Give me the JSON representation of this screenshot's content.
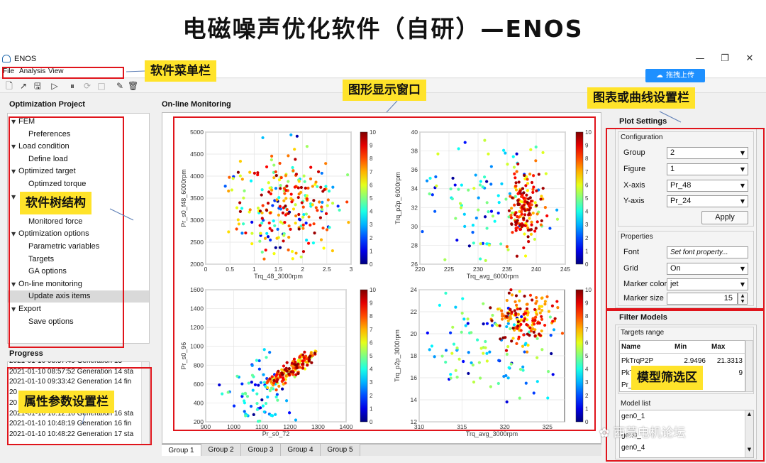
{
  "header": {
    "title": "电磁噪声优化软件（自研）—ENOS"
  },
  "window": {
    "app_name": "ENOS",
    "min_glyph": "—",
    "max_glyph": "❐",
    "close_glyph": "✕"
  },
  "menu": {
    "file": "File",
    "analysis": "Analysis",
    "view": "View"
  },
  "upload_button": {
    "label": "拖拽上传"
  },
  "left": {
    "project_title": "Optimization Project",
    "tree": [
      {
        "label": "FEM",
        "level": 0,
        "expanded": true
      },
      {
        "label": "Preferences",
        "level": 1
      },
      {
        "label": "Load condition",
        "level": 0,
        "expanded": true
      },
      {
        "label": "Define load",
        "level": 1
      },
      {
        "label": "Optimized target",
        "level": 0,
        "expanded": true
      },
      {
        "label": "Optimzed torque",
        "level": 1
      },
      {
        "label": "",
        "level": 0,
        "expanded": true
      },
      {
        "label": "Monitored torque",
        "level": 1
      },
      {
        "label": "Monitored force",
        "level": 1
      },
      {
        "label": "Optimization options",
        "level": 0,
        "expanded": true
      },
      {
        "label": "Parametric variables",
        "level": 1
      },
      {
        "label": "Targets",
        "level": 1
      },
      {
        "label": "GA options",
        "level": 1
      },
      {
        "label": "On-line monitoring",
        "level": 0,
        "expanded": true
      },
      {
        "label": "Update axis items",
        "level": 1,
        "selected": true
      },
      {
        "label": "Export",
        "level": 0,
        "expanded": true
      },
      {
        "label": "Save options",
        "level": 1
      }
    ],
    "progress_title": "Progress",
    "progress_log": [
      "2021-01-10 08:57:49  Generation 13",
      "2021-01-10 08:57:52  Generation 14 sta",
      "2021-01-10 09:33:42  Generation 14 fin",
      "20",
      "20",
      "2021-01-10 10:12:16  Generation 16 sta",
      "2021-01-10 10:48:19  Generation 16 fin",
      "2021-01-10 10:48:22  Generation 17 sta"
    ]
  },
  "center": {
    "title": "On-line Monitoring",
    "tabs": [
      "Group 1",
      "Group 2",
      "Group 3",
      "Group 4",
      "Group 5"
    ]
  },
  "right": {
    "plot_settings_title": "Plot Settings",
    "configuration": {
      "title": "Configuration",
      "group_label": "Group",
      "group_value": "2",
      "figure_label": "Figure",
      "figure_value": "1",
      "xaxis_label": "X-axis",
      "xaxis_value": "Pr_48",
      "yaxis_label": "Y-axis",
      "yaxis_value": "Pr_24",
      "apply": "Apply"
    },
    "properties": {
      "title": "Properties",
      "font_label": "Font",
      "font_value": "Set font property...",
      "grid_label": "Grid",
      "grid_value": "On",
      "marker_color_label": "Marker color",
      "marker_color_value": "jet",
      "marker_size_label": "Marker size",
      "marker_size_value": "15"
    },
    "filter": {
      "title": "Filter Models",
      "targets_range": "Targets range",
      "columns": [
        "Name",
        "Min",
        "Max"
      ],
      "rows": [
        {
          "name": "PkTrqP2P",
          "min": "2.9496",
          "max": "21.3313"
        },
        {
          "name": "PkT",
          "min": "",
          "max": "9"
        },
        {
          "name": "Pr_",
          "min": "",
          "max": ""
        }
      ],
      "model_list_title": "Model list",
      "models": [
        "gen0_1",
        "gen0_",
        "gen0_4"
      ]
    }
  },
  "annotations": {
    "menu_bar": "软件菜单栏",
    "plot_window": "图形显示窗口",
    "chart_settings": "图表或曲线设置栏",
    "tree": "软件树结构",
    "props": "属性参数设置栏",
    "filter": "模型筛选区",
    "watermark": "西莫电机论坛"
  },
  "colors": {
    "annotation_red": "#e0141b",
    "annotation_yellow": "#ffe32a",
    "upload_blue": "#1e90ff"
  },
  "chart_data": [
    {
      "type": "scatter",
      "xlabel": "Trq_48_3000rpm",
      "ylabel": "Pr_s0_f48_6000rpm",
      "xlim": [
        0,
        3
      ],
      "ylim": [
        2000,
        5000
      ],
      "xticks": [
        "0",
        "0.5",
        "1",
        "1.5",
        "2",
        "2.5",
        "3"
      ],
      "yticks": [
        "2000",
        "2500",
        "3000",
        "3500",
        "4000",
        "4500",
        "5000"
      ],
      "colorbar": {
        "range": [
          0,
          10
        ],
        "ticks": [
          "0",
          "1",
          "2",
          "3",
          "4",
          "5",
          "6",
          "7",
          "8",
          "9",
          "10"
        ],
        "colormap": "jet"
      },
      "grid": true
    },
    {
      "type": "scatter",
      "xlabel": "Trq_avg_6000rpm",
      "ylabel": "Trq_p2p_6000rpm",
      "xlim": [
        220,
        245
      ],
      "ylim": [
        26,
        40
      ],
      "xticks": [
        "220",
        "225",
        "230",
        "235",
        "240",
        "245"
      ],
      "yticks": [
        "26",
        "28",
        "30",
        "32",
        "34",
        "36",
        "38",
        "40"
      ],
      "colorbar": {
        "range": [
          0,
          10
        ],
        "ticks": [
          "0",
          "1",
          "2",
          "3",
          "4",
          "5",
          "6",
          "7",
          "8",
          "9",
          "10"
        ],
        "colormap": "jet"
      },
      "grid": true
    },
    {
      "type": "scatter",
      "xlabel": "Pr_s0_72",
      "ylabel": "Pr_s0_96",
      "xlim": [
        900,
        1400
      ],
      "ylim": [
        200,
        1600
      ],
      "xticks": [
        "900",
        "1000",
        "1100",
        "1200",
        "1300",
        "1400"
      ],
      "yticks": [
        "200",
        "400",
        "600",
        "800",
        "1000",
        "1200",
        "1400",
        "1600"
      ],
      "colorbar": {
        "range": [
          0,
          10
        ],
        "ticks": [
          "0",
          "1",
          "2",
          "3",
          "4",
          "5",
          "6",
          "7",
          "8",
          "9",
          "10"
        ],
        "colormap": "jet"
      },
      "grid": true
    },
    {
      "type": "scatter",
      "xlabel": "Trq_avg_3000rpm",
      "ylabel": "Trq_p2p_3000rpm",
      "xlim": [
        310,
        327
      ],
      "ylim": [
        12,
        24
      ],
      "xticks": [
        "310",
        "315",
        "320",
        "325"
      ],
      "yticks": [
        "12",
        "14",
        "16",
        "18",
        "20",
        "22",
        "24"
      ],
      "colorbar": {
        "range": [
          0,
          10
        ],
        "ticks": [
          "0",
          "1",
          "2",
          "3",
          "4",
          "5",
          "6",
          "7",
          "8",
          "9",
          "10"
        ],
        "colormap": "jet"
      },
      "grid": true
    }
  ]
}
